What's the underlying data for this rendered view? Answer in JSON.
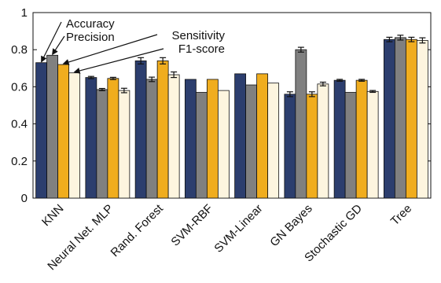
{
  "chart_data": {
    "type": "bar",
    "title": "",
    "xlabel": "",
    "ylabel": "",
    "ylim": [
      0,
      1
    ],
    "yticks": [
      "0",
      "0.2",
      "0.4",
      "0.6",
      "0.8",
      "1"
    ],
    "grid": false,
    "categories": [
      "KNN",
      "Neural Net. MLP",
      "Rand. Forest",
      "SVM-RBF",
      "SVM-Linear",
      "GN Bayes",
      "Stochastic GD",
      "Tree"
    ],
    "series": [
      {
        "name": "Accuracy",
        "color": "#2c3e6e",
        "values": [
          0.73,
          0.65,
          0.74,
          0.64,
          0.67,
          0.56,
          0.635,
          0.855
        ],
        "errors": [
          0.0,
          0.006,
          0.017,
          0.0,
          0.0,
          0.013,
          0.005,
          0.012
        ]
      },
      {
        "name": "Precision",
        "color": "#808080",
        "values": [
          0.77,
          0.585,
          0.64,
          0.57,
          0.61,
          0.8,
          0.57,
          0.865
        ],
        "errors": [
          0.0,
          0.006,
          0.012,
          0.0,
          0.0,
          0.013,
          0.0,
          0.013
        ]
      },
      {
        "name": "Sensitivity",
        "color": "#f0ad1e",
        "values": [
          0.72,
          0.645,
          0.74,
          0.64,
          0.67,
          0.56,
          0.635,
          0.855
        ],
        "errors": [
          0.0,
          0.006,
          0.017,
          0.0,
          0.0,
          0.013,
          0.005,
          0.012
        ]
      },
      {
        "name": "F1-score",
        "color": "#fdf5df",
        "values": [
          0.675,
          0.58,
          0.665,
          0.58,
          0.62,
          0.615,
          0.575,
          0.85
        ],
        "errors": [
          0.0,
          0.012,
          0.015,
          0.0,
          0.0,
          0.01,
          0.005,
          0.014
        ]
      }
    ],
    "annotations": [
      "Accuracy",
      "Precision",
      "Sensitivity",
      "F1-score"
    ]
  }
}
